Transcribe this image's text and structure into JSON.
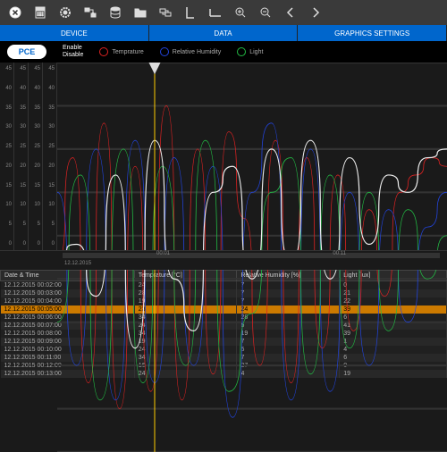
{
  "colors": {
    "accent": "#0066cc",
    "highlight": "#cc7a00",
    "cursor": "#ffcc00",
    "temp": "#dd2222",
    "humidity": "#2244dd",
    "light": "#22bb44",
    "white": "#eeeeee",
    "bg": "#1a1a1a",
    "grid": "#333333"
  },
  "toolbar_icons": [
    "close",
    "calculator",
    "gear",
    "connect",
    "database",
    "folder",
    "transfer",
    "ruler-v",
    "ruler-h",
    "zoom-in",
    "zoom-out",
    "prev",
    "next"
  ],
  "tabs": [
    "DEVICE",
    "DATA",
    "GRAPHICS SETTINGS"
  ],
  "logo": "PCE",
  "enable_labels": {
    "en": "Enable",
    "dis": "Disable"
  },
  "legend": [
    {
      "label": "Temprature",
      "color": "#dd2222"
    },
    {
      "label": "Relative Humidity",
      "color": "#2244dd"
    },
    {
      "label": "Light",
      "color": "#22bb44"
    }
  ],
  "chart": {
    "y_ticks": [
      45,
      40,
      35,
      30,
      25,
      20,
      15,
      10,
      5,
      0
    ],
    "y_axis_count": 4,
    "ylim": [
      0,
      45
    ],
    "cursor_x": 0.25,
    "series": [
      {
        "color": "#dd2222",
        "pts": [
          0,
          22,
          0.04,
          34,
          0.08,
          8,
          0.12,
          38,
          0.16,
          5,
          0.2,
          33,
          0.24,
          7,
          0.28,
          40,
          0.32,
          6,
          0.36,
          35,
          0.4,
          9,
          0.44,
          37,
          0.48,
          27,
          0.52,
          10,
          0.56,
          36,
          0.6,
          8,
          0.64,
          34,
          0.68,
          12,
          0.72,
          32,
          0.76,
          14,
          0.8,
          28,
          0.84,
          18,
          0.88,
          30,
          0.92,
          32,
          0.96,
          34,
          1,
          33
        ]
      },
      {
        "color": "#2244dd",
        "pts": [
          0,
          30,
          0.05,
          10,
          0.1,
          35,
          0.15,
          6,
          0.2,
          36,
          0.25,
          8,
          0.3,
          34,
          0.35,
          10,
          0.4,
          33,
          0.45,
          4,
          0.5,
          30,
          0.55,
          38,
          0.6,
          6,
          0.65,
          35,
          0.7,
          7,
          0.75,
          30,
          0.8,
          10,
          0.85,
          28,
          0.9,
          15,
          0.95,
          26,
          1,
          30
        ]
      },
      {
        "color": "#22bb44",
        "pts": [
          0,
          15,
          0.06,
          32,
          0.11,
          6,
          0.17,
          35,
          0.22,
          8,
          0.27,
          33,
          0.33,
          10,
          0.38,
          36,
          0.44,
          7,
          0.5,
          16,
          0.55,
          30,
          0.6,
          34,
          0.65,
          9,
          0.7,
          32,
          0.75,
          12,
          0.8,
          30,
          0.85,
          14,
          0.9,
          28,
          0.95,
          20,
          1,
          25
        ]
      },
      {
        "color": "#eeeeee",
        "pts": [
          0,
          23,
          0.05,
          24,
          0.1,
          18,
          0.15,
          32,
          0.2,
          12,
          0.25,
          36,
          0.3,
          20,
          0.35,
          14,
          0.4,
          30,
          0.45,
          33,
          0.5,
          20,
          0.55,
          35,
          0.6,
          22,
          0.65,
          36,
          0.7,
          20,
          0.75,
          34,
          0.8,
          24,
          0.85,
          32,
          0.9,
          30,
          0.95,
          34,
          1,
          35
        ]
      }
    ],
    "time_labels": [
      {
        "x": 0.25,
        "t": "00:01"
      },
      {
        "x": 0.72,
        "t": "00:11"
      }
    ],
    "date_label": "12.12.2015"
  },
  "table": {
    "cols": [
      "Date & Time",
      "Temprature [°C]",
      "Relative Humidity [%]",
      "Light [lux]"
    ],
    "rows": [
      [
        "12.12.2015 00:02:00",
        "24",
        "7",
        "0"
      ],
      [
        "12.12.2015 00:03:00",
        "28",
        "7",
        "21"
      ],
      [
        "12.12.2015 00:04:00",
        "19",
        "7",
        "22"
      ],
      [
        "12.12.2015 00:05:00",
        "23",
        "24",
        "39",
        true
      ],
      [
        "12.12.2015 00:06:00",
        "34",
        "28",
        "6"
      ],
      [
        "12.12.2015 00:07:00",
        "24",
        "5",
        "41"
      ],
      [
        "12.12.2015 00:08:00",
        "34",
        "19",
        "39"
      ],
      [
        "12.12.2015 00:09:00",
        "19",
        "7",
        "1"
      ],
      [
        "12.12.2015 00:10:00",
        "24",
        "5",
        "4"
      ],
      [
        "12.12.2015 00:11:00",
        "34",
        "7",
        "6"
      ],
      [
        "12.12.2015 00:12:00",
        "16",
        "27",
        "0"
      ],
      [
        "12.12.2015 00:13:00",
        "24",
        "4",
        "19"
      ]
    ]
  }
}
